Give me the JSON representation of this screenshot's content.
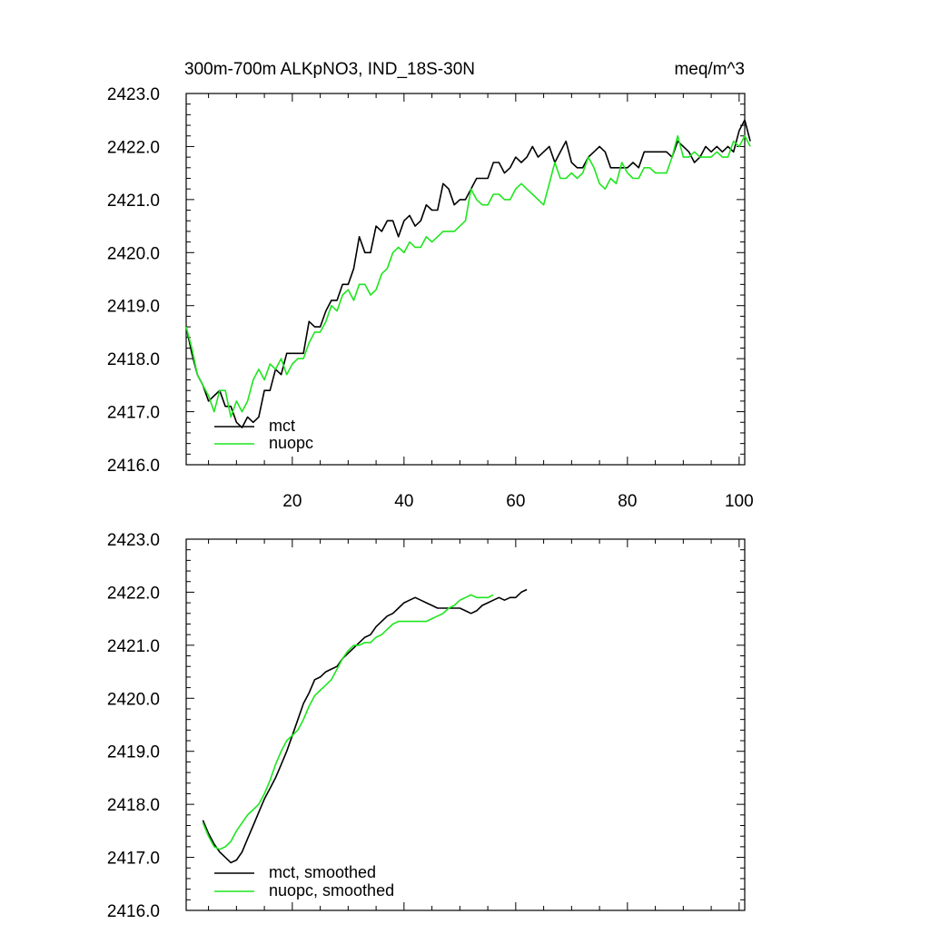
{
  "header": {
    "title_left": "300m-700m ALKpNO3, IND_18S-30N",
    "title_right": "meq/m^3"
  },
  "colors": {
    "mct": "#000000",
    "nuopc": "#1ee61e"
  },
  "chart_data": [
    {
      "type": "line",
      "title": "300m-700m ALKpNO3, IND_18S-30N",
      "units": "meq/m^3",
      "xlim": [
        1,
        101
      ],
      "ylim": [
        2416.0,
        2423.0
      ],
      "x_ticks": [
        20,
        40,
        60,
        80,
        100
      ],
      "y_ticks": [
        "2416.0",
        "2417.0",
        "2418.0",
        "2419.0",
        "2420.0",
        "2421.0",
        "2422.0",
        "2423.0"
      ],
      "legend": "bottom-left",
      "series": [
        {
          "name": "mct",
          "color": "#000000",
          "values": [
            2418.6,
            2418.1,
            2417.7,
            2417.5,
            2417.2,
            2417.3,
            2417.4,
            2417.1,
            2417.1,
            2416.8,
            2416.7,
            2416.9,
            2416.8,
            2416.9,
            2417.4,
            2417.4,
            2417.8,
            2417.7,
            2418.1,
            2418.1,
            2418.1,
            2418.1,
            2418.7,
            2418.6,
            2418.6,
            2418.9,
            2419.1,
            2419.1,
            2419.4,
            2419.4,
            2419.7,
            2420.3,
            2420.0,
            2420.0,
            2420.5,
            2420.4,
            2420.6,
            2420.6,
            2420.3,
            2420.6,
            2420.7,
            2420.5,
            2420.6,
            2420.9,
            2420.8,
            2420.8,
            2421.3,
            2421.2,
            2420.9,
            2421.0,
            2421.0,
            2421.2,
            2421.4,
            2421.4,
            2421.4,
            2421.7,
            2421.7,
            2421.5,
            2421.6,
            2421.8,
            2421.7,
            2421.8,
            2422.0,
            2421.8,
            2421.9,
            2422.0,
            2421.7,
            2421.9,
            2422.1,
            2421.7,
            2421.6,
            2421.6,
            2421.8,
            2421.9,
            2422.0,
            2421.9,
            2421.6,
            2421.6,
            2421.6,
            2421.6,
            2421.7,
            2421.6,
            2421.9,
            2421.9,
            2421.9,
            2421.9,
            2421.9,
            2421.8,
            2422.1,
            2422.0,
            2421.9,
            2421.7,
            2421.8,
            2422.0,
            2421.9,
            2422.0,
            2421.9,
            2422.0,
            2421.9,
            2422.3,
            2422.5,
            2422.1
          ]
        },
        {
          "name": "nuopc",
          "color": "#1ee61e",
          "values": [
            2418.6,
            2418.2,
            2417.7,
            2417.5,
            2417.3,
            2417.0,
            2417.4,
            2417.4,
            2416.9,
            2417.2,
            2417.0,
            2417.2,
            2417.6,
            2417.8,
            2417.6,
            2417.9,
            2417.8,
            2418.0,
            2417.7,
            2417.9,
            2418.0,
            2418.0,
            2418.3,
            2418.5,
            2418.5,
            2418.7,
            2419.0,
            2418.9,
            2419.2,
            2419.3,
            2419.1,
            2419.4,
            2419.4,
            2419.2,
            2419.3,
            2419.6,
            2419.7,
            2420.0,
            2420.1,
            2420.0,
            2420.2,
            2420.1,
            2420.1,
            2420.3,
            2420.2,
            2420.3,
            2420.4,
            2420.4,
            2420.4,
            2420.5,
            2420.6,
            2421.2,
            2421.0,
            2420.9,
            2420.9,
            2421.1,
            2421.1,
            2421.0,
            2421.0,
            2421.2,
            2421.3,
            2421.2,
            2421.1,
            2421.0,
            2420.9,
            2421.3,
            2421.7,
            2421.4,
            2421.4,
            2421.5,
            2421.4,
            2421.5,
            2421.8,
            2421.6,
            2421.3,
            2421.2,
            2421.4,
            2421.3,
            2421.7,
            2421.5,
            2421.4,
            2421.4,
            2421.6,
            2421.6,
            2421.5,
            2421.5,
            2421.5,
            2421.8,
            2422.2,
            2421.8,
            2421.8,
            2421.9,
            2421.8,
            2421.8,
            2421.8,
            2421.9,
            2421.8,
            2421.8,
            2422.1,
            2422.0,
            2422.2,
            2422.0
          ]
        }
      ]
    },
    {
      "type": "line",
      "xlim": [
        1,
        101
      ],
      "ylim": [
        2416.0,
        2423.0
      ],
      "y_ticks": [
        "2416.0",
        "2417.0",
        "2418.0",
        "2419.0",
        "2420.0",
        "2421.0",
        "2422.0",
        "2423.0"
      ],
      "legend": "bottom-left",
      "series": [
        {
          "name": "mct, smoothed",
          "color": "#000000",
          "values": [
            2417.7,
            2417.45,
            2417.25,
            2417.1,
            2417.0,
            2416.9,
            2416.95,
            2417.1,
            2417.35,
            2417.6,
            2417.85,
            2418.1,
            2418.3,
            2418.5,
            2418.75,
            2419.0,
            2419.3,
            2419.6,
            2419.9,
            2420.1,
            2420.35,
            2420.4,
            2420.5,
            2420.55,
            2420.6,
            2420.75,
            2420.85,
            2420.95,
            2421.05,
            2421.15,
            2421.2,
            2421.35,
            2421.45,
            2421.55,
            2421.6,
            2421.7,
            2421.8,
            2421.85,
            2421.9,
            2421.85,
            2421.8,
            2421.75,
            2421.7,
            2421.7,
            2421.7,
            2421.7,
            2421.7,
            2421.65,
            2421.6,
            2421.65,
            2421.75,
            2421.8,
            2421.85,
            2421.9,
            2421.85,
            2421.9,
            2421.9,
            2422.0,
            2422.05
          ]
        },
        {
          "name": "nuopc, smoothed",
          "color": "#1ee61e",
          "values": [
            2417.65,
            2417.4,
            2417.2,
            2417.15,
            2417.2,
            2417.3,
            2417.5,
            2417.65,
            2417.8,
            2417.9,
            2418.0,
            2418.2,
            2418.45,
            2418.75,
            2419.0,
            2419.2,
            2419.3,
            2419.4,
            2419.6,
            2419.85,
            2420.05,
            2420.15,
            2420.25,
            2420.35,
            2420.55,
            2420.75,
            2420.9,
            2421.0,
            2421.0,
            2421.05,
            2421.05,
            2421.15,
            2421.2,
            2421.3,
            2421.4,
            2421.45,
            2421.45,
            2421.45,
            2421.45,
            2421.45,
            2421.45,
            2421.5,
            2421.55,
            2421.6,
            2421.7,
            2421.75,
            2421.85,
            2421.9,
            2421.95,
            2421.9,
            2421.9,
            2421.9,
            2421.95
          ]
        }
      ]
    }
  ]
}
